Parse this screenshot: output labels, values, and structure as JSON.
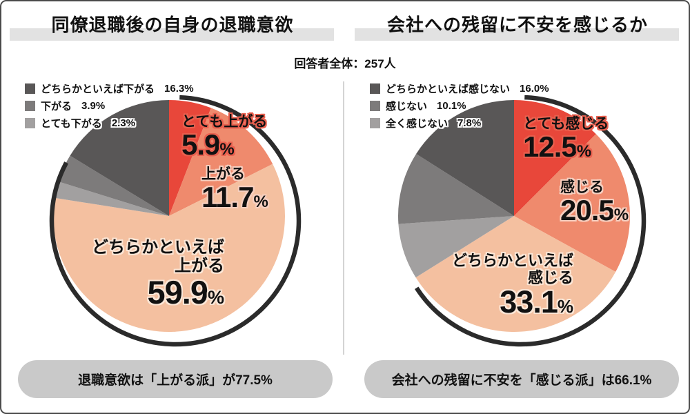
{
  "header": {
    "respondents": "回答者全体：257人"
  },
  "chart_data": [
    {
      "type": "pie",
      "title": "同僚退職後の自身の退職意欲",
      "unit": "%",
      "slices": [
        {
          "label": "とても上がる",
          "label_lines": [
            "とても上がる"
          ],
          "value": 5.9,
          "color": "#e8473a"
        },
        {
          "label": "上がる",
          "label_lines": [
            "上がる"
          ],
          "value": 11.7,
          "color": "#ef8a6d"
        },
        {
          "label": "どちらかといえば上がる",
          "label_lines": [
            "どちらかといえば",
            "上がる"
          ],
          "value": 59.9,
          "color": "#f4c0a0"
        },
        {
          "label": "とても下がる",
          "label_lines": [],
          "value": 2.3,
          "color": "#a2a0a0"
        },
        {
          "label": "下がる",
          "label_lines": [],
          "value": 3.9,
          "color": "#7d7b7b"
        },
        {
          "label": "どちらかといえば下がる",
          "label_lines": [],
          "value": 16.3,
          "color": "#595757"
        }
      ],
      "legend": [
        {
          "label": "どちらかといえば下がる",
          "value": "16.3%",
          "color": "#595757"
        },
        {
          "label": "下がる",
          "value": "3.9%",
          "color": "#7d7b7b"
        },
        {
          "label": "とても下がる",
          "value": "2.3%",
          "color": "#a2a0a0"
        }
      ],
      "summary": "退職意欲は「上がる派」が77.5%"
    },
    {
      "type": "pie",
      "title": "会社への残留に不安を感じるか",
      "unit": "%",
      "slices": [
        {
          "label": "とても感じる",
          "label_lines": [
            "とても感じる"
          ],
          "value": 12.5,
          "color": "#e8473a"
        },
        {
          "label": "感じる",
          "label_lines": [
            "感じる"
          ],
          "value": 20.5,
          "color": "#ef8a6d"
        },
        {
          "label": "どちらかといえば感じる",
          "label_lines": [
            "どちらかといえば",
            "感じる"
          ],
          "value": 33.1,
          "color": "#f4c0a0"
        },
        {
          "label": "全く感じない",
          "label_lines": [],
          "value": 7.8,
          "color": "#a2a0a0"
        },
        {
          "label": "感じない",
          "label_lines": [],
          "value": 10.1,
          "color": "#7d7b7b"
        },
        {
          "label": "どちらかといえば感じない",
          "label_lines": [],
          "value": 16.0,
          "color": "#595757"
        }
      ],
      "legend": [
        {
          "label": "どちらかといえば感じない",
          "value": "16.0%",
          "color": "#595757"
        },
        {
          "label": "感じない",
          "value": "10.1%",
          "color": "#7d7b7b"
        },
        {
          "label": "全く感じない",
          "value": "7.8%",
          "color": "#a2a0a0"
        }
      ],
      "summary": "会社への残留に不安を「感じる派」は66.1%"
    }
  ],
  "style": {
    "ring_color": "#2b2b2b",
    "band_color": "#e2e2e2",
    "pill_color": "#c9c9c9"
  }
}
